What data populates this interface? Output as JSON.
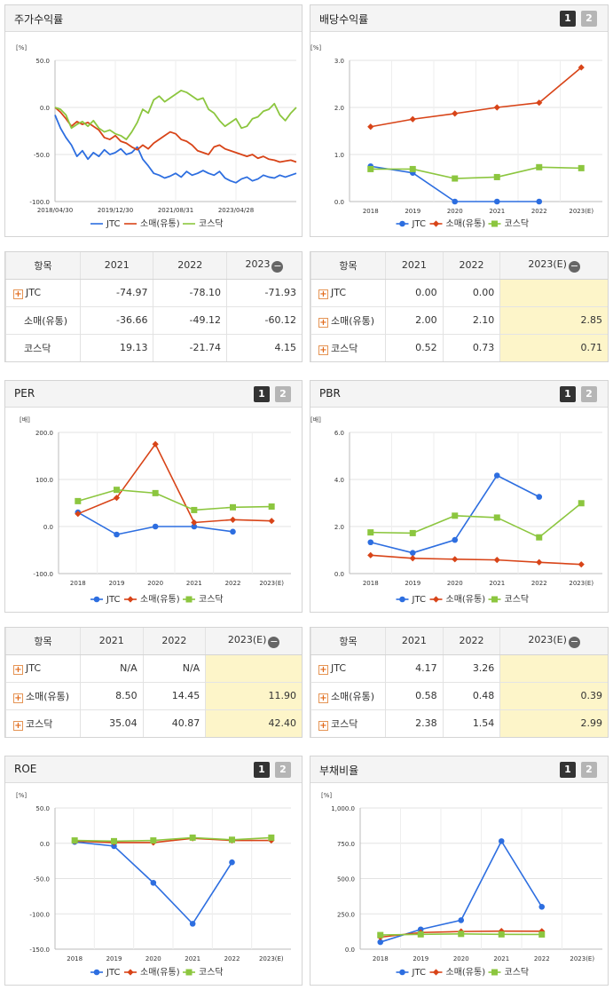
{
  "colors": {
    "jtc": "#2d6ee0",
    "retail": "#d84418",
    "kosdaq": "#8cc63f"
  },
  "legend": {
    "jtc": "JTC",
    "retail": "소매(유통)",
    "kosdaq": "코스닥"
  },
  "pager": {
    "p1": "1",
    "p2": "2"
  },
  "price_chart": {
    "title": "주가수익률",
    "unit": "[%]",
    "chart_data": {
      "type": "line",
      "ylim": [
        -100,
        50
      ],
      "yticks": [
        "50.0",
        "0.0",
        "-50.0",
        "-100.0"
      ],
      "ytick_values": [
        50,
        0,
        -50,
        -100
      ],
      "xticks": [
        "2018/04/30",
        "2019/12/30",
        "2021/08/31",
        "2023/04/28"
      ],
      "series": [
        {
          "key": "jtc",
          "values": [
            -8,
            -22,
            -32,
            -40,
            -52,
            -46,
            -55,
            -48,
            -52,
            -45,
            -50,
            -48,
            -44,
            -50,
            -48,
            -42,
            -55,
            -62,
            -70,
            -72,
            -75,
            -73,
            -70,
            -74,
            -68,
            -72,
            -70,
            -67,
            -70,
            -72,
            -68,
            -75,
            -78,
            -80,
            -76,
            -74,
            -78,
            -76,
            -72,
            -74,
            -75,
            -72,
            -74,
            -72,
            -70
          ]
        },
        {
          "key": "retail",
          "values": [
            0,
            -5,
            -12,
            -20,
            -15,
            -18,
            -16,
            -20,
            -24,
            -32,
            -34,
            -30,
            -36,
            -38,
            -42,
            -45,
            -40,
            -44,
            -38,
            -34,
            -30,
            -26,
            -28,
            -34,
            -36,
            -40,
            -46,
            -48,
            -50,
            -42,
            -40,
            -44,
            -46,
            -48,
            -50,
            -52,
            -50,
            -54,
            -52,
            -55,
            -56,
            -58,
            -57,
            -56,
            -58
          ]
        },
        {
          "key": "kosdaq",
          "values": [
            0,
            -2,
            -8,
            -22,
            -18,
            -15,
            -20,
            -14,
            -22,
            -26,
            -24,
            -28,
            -30,
            -34,
            -26,
            -16,
            -2,
            -6,
            8,
            12,
            6,
            10,
            14,
            18,
            16,
            12,
            8,
            10,
            -2,
            -6,
            -14,
            -20,
            -16,
            -12,
            -22,
            -20,
            -12,
            -10,
            -4,
            -2,
            4,
            -8,
            -14,
            -6,
            0
          ]
        }
      ]
    }
  },
  "dividend_chart": {
    "title": "배당수익률",
    "unit": "[%]",
    "chart_data": {
      "type": "line",
      "ylim": [
        0,
        3
      ],
      "yticks": [
        "3.0",
        "2.0",
        "1.0",
        "0.0"
      ],
      "ytick_values": [
        3,
        2,
        1,
        0
      ],
      "categories": [
        "2018",
        "2019",
        "2020",
        "2021",
        "2022",
        "2023(E)"
      ],
      "series": [
        {
          "key": "jtc",
          "values": [
            0.75,
            0.61,
            0.0,
            0.0,
            0.0,
            null
          ]
        },
        {
          "key": "retail",
          "values": [
            1.59,
            1.75,
            1.87,
            2.0,
            2.1,
            2.85
          ]
        },
        {
          "key": "kosdaq",
          "values": [
            0.69,
            0.69,
            0.49,
            0.52,
            0.73,
            0.71
          ]
        }
      ]
    }
  },
  "price_table": {
    "headers": [
      "항목",
      "2021",
      "2022",
      "2023"
    ],
    "rows": [
      {
        "label": "JTC",
        "values": [
          "-74.97",
          "-78.10",
          "-71.93"
        ]
      },
      {
        "label": "소매(유통)",
        "values": [
          "-36.66",
          "-49.12",
          "-60.12"
        ]
      },
      {
        "label": "코스닥",
        "values": [
          "19.13",
          "-21.74",
          "4.15"
        ]
      }
    ]
  },
  "dividend_table": {
    "headers": [
      "항목",
      "2021",
      "2022",
      "2023(E)"
    ],
    "rows": [
      {
        "label": "JTC",
        "values": [
          "0.00",
          "0.00",
          ""
        ]
      },
      {
        "label": "소매(유통)",
        "values": [
          "2.00",
          "2.10",
          "2.85"
        ]
      },
      {
        "label": "코스닥",
        "values": [
          "0.52",
          "0.73",
          "0.71"
        ]
      }
    ]
  },
  "per_chart": {
    "title": "PER",
    "unit": "[배]",
    "chart_data": {
      "type": "line",
      "ylim": [
        -100,
        200
      ],
      "yticks": [
        "200.0",
        "100.0",
        "0.0",
        "-100.0"
      ],
      "ytick_values": [
        200,
        100,
        0,
        -100
      ],
      "categories": [
        "2018",
        "2019",
        "2020",
        "2021",
        "2022",
        "2023(E)"
      ],
      "series": [
        {
          "key": "jtc",
          "values": [
            30,
            -17,
            0,
            0,
            -11,
            null
          ]
        },
        {
          "key": "retail",
          "values": [
            27,
            61,
            175,
            8.5,
            14.45,
            11.9
          ]
        },
        {
          "key": "kosdaq",
          "values": [
            54,
            78,
            71,
            35.04,
            40.87,
            42.4
          ]
        }
      ]
    }
  },
  "pbr_chart": {
    "title": "PBR",
    "unit": "[배]",
    "chart_data": {
      "type": "line",
      "ylim": [
        0,
        6
      ],
      "yticks": [
        "6.0",
        "4.0",
        "2.0",
        "0.0"
      ],
      "ytick_values": [
        6,
        4,
        2,
        0
      ],
      "categories": [
        "2018",
        "2019",
        "2020",
        "2021",
        "2022",
        "2023(E)"
      ],
      "series": [
        {
          "key": "jtc",
          "values": [
            1.33,
            0.88,
            1.43,
            4.17,
            3.26,
            null
          ]
        },
        {
          "key": "retail",
          "values": [
            0.78,
            0.65,
            0.61,
            0.58,
            0.48,
            0.39
          ]
        },
        {
          "key": "kosdaq",
          "values": [
            1.75,
            1.72,
            2.46,
            2.38,
            1.54,
            2.99
          ]
        }
      ]
    }
  },
  "per_table": {
    "headers": [
      "항목",
      "2021",
      "2022",
      "2023(E)"
    ],
    "rows": [
      {
        "label": "JTC",
        "values": [
          "N/A",
          "N/A",
          ""
        ]
      },
      {
        "label": "소매(유통)",
        "values": [
          "8.50",
          "14.45",
          "11.90"
        ]
      },
      {
        "label": "코스닥",
        "values": [
          "35.04",
          "40.87",
          "42.40"
        ]
      }
    ]
  },
  "pbr_table": {
    "headers": [
      "항목",
      "2021",
      "2022",
      "2023(E)"
    ],
    "rows": [
      {
        "label": "JTC",
        "values": [
          "4.17",
          "3.26",
          ""
        ]
      },
      {
        "label": "소매(유통)",
        "values": [
          "0.58",
          "0.48",
          "0.39"
        ]
      },
      {
        "label": "코스닥",
        "values": [
          "2.38",
          "1.54",
          "2.99"
        ]
      }
    ]
  },
  "roe_chart": {
    "title": "ROE",
    "unit": "[%]",
    "chart_data": {
      "type": "line",
      "ylim": [
        -150,
        50
      ],
      "yticks": [
        "50.0",
        "0.0",
        "-50.0",
        "-100.0",
        "-150.0"
      ],
      "ytick_values": [
        50,
        0,
        -50,
        -100,
        -150
      ],
      "categories": [
        "2018",
        "2019",
        "2020",
        "2021",
        "2022",
        "2023(E)"
      ],
      "series": [
        {
          "key": "jtc",
          "values": [
            2,
            -4,
            -56,
            -114,
            -27,
            null
          ]
        },
        {
          "key": "retail",
          "values": [
            3,
            1,
            1,
            7,
            4,
            4
          ]
        },
        {
          "key": "kosdaq",
          "values": [
            4,
            3,
            4,
            8,
            5,
            8
          ]
        }
      ]
    }
  },
  "debt_chart": {
    "title": "부채비율",
    "unit": "[%]",
    "chart_data": {
      "type": "line",
      "ylim": [
        0,
        1000
      ],
      "yticks": [
        "1,000.0",
        "750.0",
        "500.0",
        "250.0",
        "0.0"
      ],
      "ytick_values": [
        1000,
        750,
        500,
        250,
        0
      ],
      "categories": [
        "2018",
        "2019",
        "2020",
        "2021",
        "2022",
        "2023(E)"
      ],
      "series": [
        {
          "key": "jtc",
          "values": [
            50,
            140,
            205,
            765,
            300,
            null
          ]
        },
        {
          "key": "retail",
          "values": [
            85,
            118,
            125,
            128,
            127,
            null
          ]
        },
        {
          "key": "kosdaq",
          "values": [
            100,
            105,
            108,
            105,
            104,
            null
          ]
        }
      ]
    }
  }
}
